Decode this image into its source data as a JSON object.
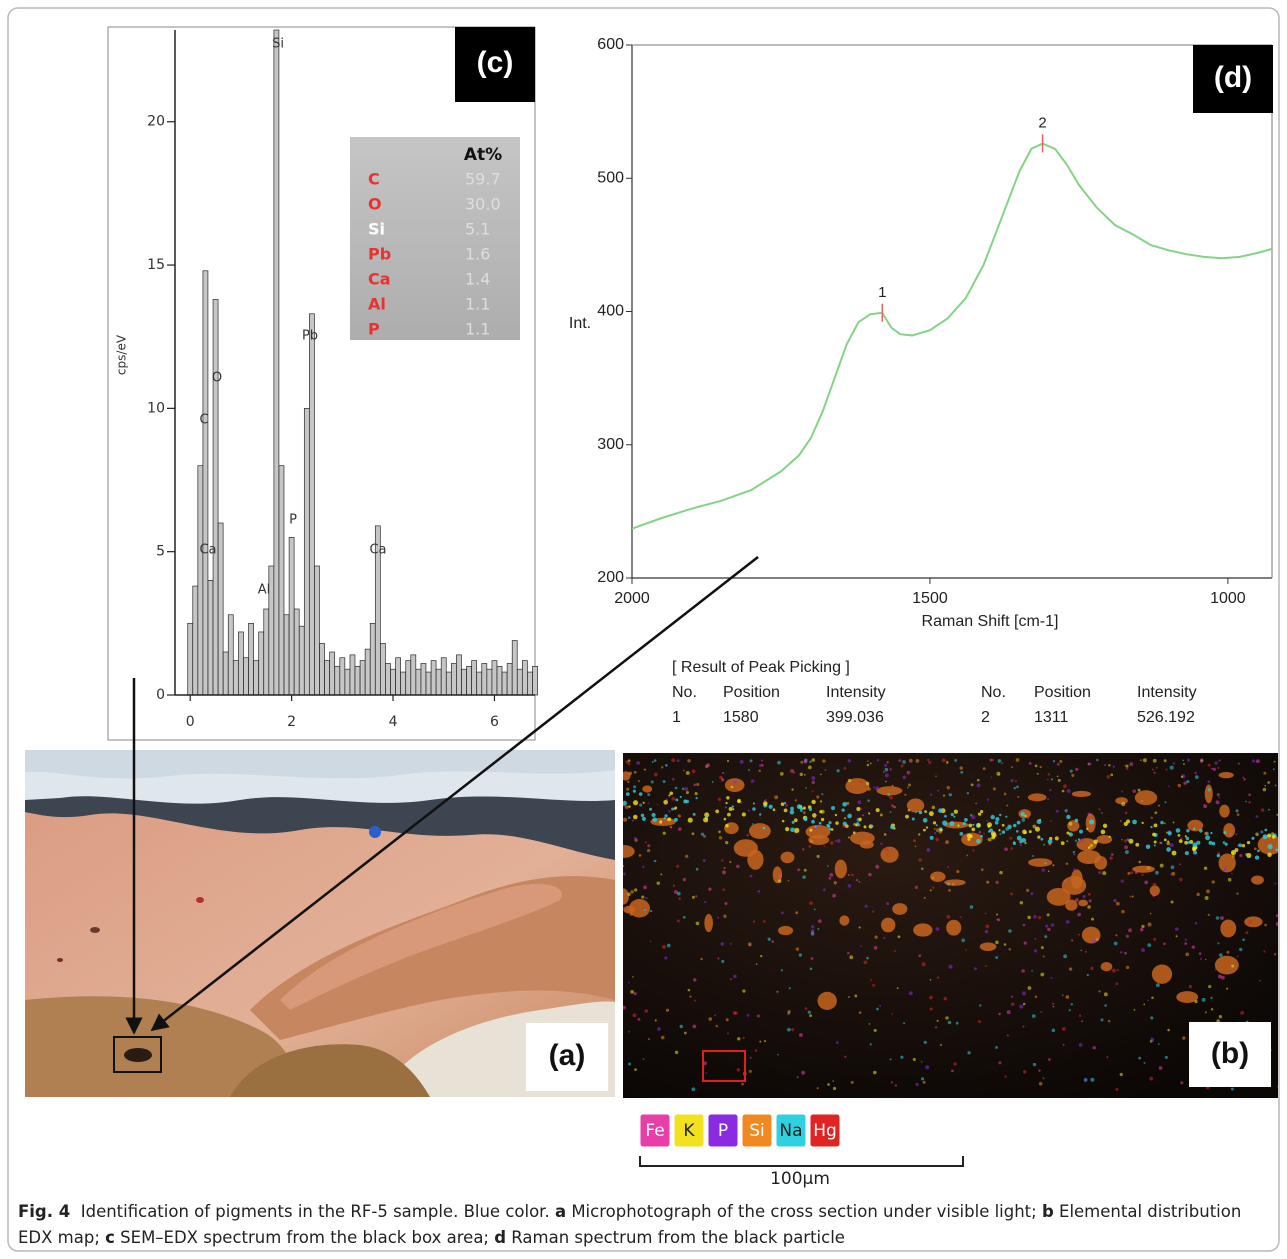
{
  "chart_data": [
    {
      "type": "bar",
      "label": "(c)",
      "ylabel": "cps/eV",
      "color": "#c6c6c6",
      "x": [
        0.0,
        0.1,
        0.2,
        0.3,
        0.4,
        0.5,
        0.6,
        0.7,
        0.8,
        0.9,
        1.0,
        1.1,
        1.2,
        1.3,
        1.4,
        1.5,
        1.6,
        1.7,
        1.8,
        1.9,
        2.0,
        2.1,
        2.2,
        2.3,
        2.4,
        2.5,
        2.6,
        2.7,
        2.8,
        2.9,
        3.0,
        3.1,
        3.2,
        3.3,
        3.4,
        3.5,
        3.6,
        3.7,
        3.8,
        3.9,
        4.0,
        4.1,
        4.2,
        4.3,
        4.4,
        4.5,
        4.6,
        4.7,
        4.8,
        4.9,
        5.0,
        5.1,
        5.2,
        5.3,
        5.4,
        5.5,
        5.6,
        5.7,
        5.8,
        5.9,
        6.0,
        6.1,
        6.2,
        6.3,
        6.4,
        6.5,
        6.6,
        6.7,
        6.8
      ],
      "values": [
        2.5,
        3.8,
        8,
        14.8,
        4,
        13.8,
        6,
        1.5,
        2.8,
        1.2,
        2.2,
        1.3,
        2.5,
        1.2,
        2.2,
        3,
        4.5,
        23.2,
        8,
        2.8,
        5.5,
        3,
        2.4,
        10,
        13.3,
        4.5,
        1.8,
        1.2,
        1.5,
        1,
        1.3,
        0.9,
        1.4,
        1,
        1.2,
        1.6,
        2.5,
        5.9,
        1.8,
        1.1,
        0.9,
        1.3,
        0.8,
        1.2,
        1.4,
        0.9,
        1.1,
        0.8,
        1.2,
        0.9,
        1.3,
        0.8,
        1.1,
        1.4,
        0.9,
        1,
        1.2,
        0.8,
        1.1,
        0.9,
        1.2,
        1,
        0.8,
        1.1,
        1.9,
        0.9,
        1.2,
        0.8,
        1
      ],
      "xlim": [
        -0.3,
        6.8
      ],
      "ylim": [
        0,
        23.2
      ],
      "xticks": [
        0,
        2,
        4,
        6
      ],
      "yticks": [
        0,
        5,
        10,
        15,
        20
      ],
      "annotations": [
        "C",
        "O",
        "Si",
        "Pb",
        "P",
        "Al",
        "Ca",
        "Ca"
      ],
      "table": {
        "header": "At%",
        "rows": [
          {
            "element": "C",
            "value": "59.7",
            "color": "#e8322f"
          },
          {
            "element": "O",
            "value": "30.0",
            "color": "#e8322f"
          },
          {
            "element": "Si",
            "value": "5.1",
            "color": "#ffffff"
          },
          {
            "element": "Pb",
            "value": "1.6",
            "color": "#e8322f"
          },
          {
            "element": "Ca",
            "value": "1.4",
            "color": "#e8322f"
          },
          {
            "element": "Al",
            "value": "1.1",
            "color": "#e8322f"
          },
          {
            "element": "P",
            "value": "1.1",
            "color": "#e8322f"
          }
        ]
      }
    },
    {
      "type": "line",
      "label": "(d)",
      "xlabel": "Raman Shift [cm-1]",
      "ylabel": "Int.",
      "color": "#86d286",
      "x": [
        2000,
        1950,
        1900,
        1850,
        1800,
        1750,
        1720,
        1700,
        1680,
        1660,
        1640,
        1620,
        1600,
        1580,
        1565,
        1550,
        1530,
        1500,
        1470,
        1440,
        1410,
        1380,
        1350,
        1330,
        1311,
        1290,
        1270,
        1250,
        1220,
        1190,
        1160,
        1130,
        1100,
        1070,
        1040,
        1010,
        980,
        950,
        926
      ],
      "values": [
        237,
        245,
        252,
        258,
        266,
        280,
        292,
        305,
        325,
        350,
        375,
        392,
        398,
        399,
        388,
        383,
        382,
        386,
        395,
        410,
        435,
        470,
        505,
        522,
        526,
        522,
        510,
        495,
        478,
        465,
        458,
        450,
        446,
        443,
        441,
        440,
        441,
        444,
        447
      ],
      "xlim": [
        2000,
        926
      ],
      "ylim": [
        200,
        600
      ],
      "xticks": [
        2000,
        1500,
        1000
      ],
      "yticks": [
        200,
        300,
        400,
        500,
        600
      ],
      "peaks": {
        "title": "[ Result of Peak Picking ]",
        "columns": [
          "No.",
          "Position",
          "Intensity"
        ],
        "rows": [
          {
            "no": 1,
            "position": 1580,
            "intensity": 399.036
          },
          {
            "no": 2,
            "position": 1311,
            "intensity": 526.192
          }
        ]
      },
      "peak_color": "#e86060"
    }
  ],
  "panels": {
    "a": "(a)",
    "b": "(b)"
  },
  "legend": {
    "items": [
      {
        "name": "Fe",
        "color": "#e83ea8",
        "text_color": "#ffffff"
      },
      {
        "name": "K",
        "color": "#f2e21e",
        "text_color": "#222222"
      },
      {
        "name": "P",
        "color": "#8a2be2",
        "text_color": "#ffffff"
      },
      {
        "name": "Si",
        "color": "#f08a20",
        "text_color": "#ffffff"
      },
      {
        "name": "Na",
        "color": "#2fd0e0",
        "text_color": "#222222"
      },
      {
        "name": "Hg",
        "color": "#e02424",
        "text_color": "#ffffff"
      }
    ],
    "scale_bar": "100µm"
  },
  "caption": {
    "lines": [
      [
        {
          "text": "Fig. 4",
          "bold": true
        },
        {
          "text": "  Identification of pigments in the RF-5 sample. Blue color. ",
          "bold": false
        },
        {
          "text": "a",
          "bold": true
        },
        {
          "text": " Microphotograph of the cross section under visible light; ",
          "bold": false
        },
        {
          "text": "b",
          "bold": true
        },
        {
          "text": " Elemental distribution",
          "bold": false
        }
      ],
      [
        {
          "text": "EDX map; ",
          "bold": false
        },
        {
          "text": "c",
          "bold": true
        },
        {
          "text": " SEM–EDX spectrum from the black box area; ",
          "bold": false
        },
        {
          "text": "d",
          "bold": true
        },
        {
          "text": " Raman spectrum from the black particle",
          "bold": false
        }
      ]
    ]
  }
}
